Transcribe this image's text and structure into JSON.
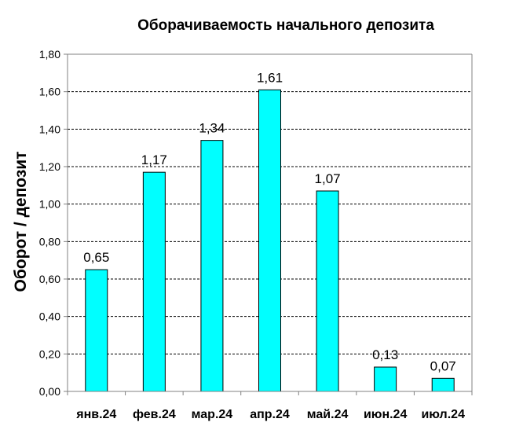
{
  "chart_data": {
    "type": "bar",
    "title": "Оборачиваемость начального депозита",
    "xlabel": "",
    "ylabel": "Оборот / депозит",
    "categories": [
      "янв.24",
      "фев.24",
      "мар.24",
      "апр.24",
      "май.24",
      "июн.24",
      "июл.24"
    ],
    "values": [
      0.65,
      1.17,
      1.34,
      1.61,
      1.07,
      0.13,
      0.07
    ],
    "value_labels": [
      "0,65",
      "1,17",
      "1,34",
      "1,61",
      "1,07",
      "0,13",
      "0,07"
    ],
    "ylim": [
      0,
      1.8
    ],
    "y_ticks": [
      0,
      0.2,
      0.4,
      0.6,
      0.8,
      1.0,
      1.2,
      1.4,
      1.6,
      1.8
    ],
    "y_tick_labels": [
      "0,00",
      "0,20",
      "0,40",
      "0,60",
      "0,80",
      "1,00",
      "1,20",
      "1,40",
      "1,60",
      "1,80"
    ],
    "grid": true,
    "legend": "none",
    "colors": {
      "bar_fill": "#00ffff",
      "bar_stroke": "#000000",
      "gridline": "#000000",
      "axis": "#808080",
      "background": "#ffffff"
    }
  }
}
